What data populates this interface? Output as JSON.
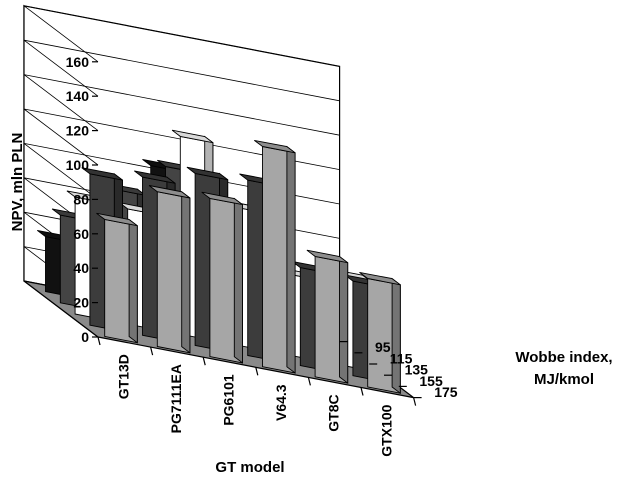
{
  "chart_data": {
    "type": "bar",
    "title": "",
    "xlabel": "GT model",
    "ylabel": "NPV, mln PLN",
    "zlabel": [
      "Wobbe index,",
      "MJ/kmol"
    ],
    "categories": [
      "GT13D",
      "PG7111EA",
      "PG6101",
      "V64.3",
      "GT8C",
      "GTX100"
    ],
    "depth_categories": [
      "95",
      "115",
      "135",
      "155",
      "175"
    ],
    "ylim": [
      0,
      160
    ],
    "yticks": [
      "0",
      "20",
      "40",
      "60",
      "80",
      "100",
      "120",
      "140",
      "160"
    ],
    "grid": true,
    "series": [
      {
        "name": "95",
        "color": "#a6a6a6",
        "values": [
          68,
          90,
          92,
          128,
          70,
          63
        ]
      },
      {
        "name": "115",
        "color": "#3c3c3c",
        "values": [
          88,
          92,
          100,
          102,
          57,
          55
        ]
      },
      {
        "name": "135",
        "color": "#ffffff",
        "values": [
          68,
          67,
          115,
          80,
          47,
          52
        ]
      },
      {
        "name": "155",
        "color": "#444444",
        "values": [
          51,
          72,
          91,
          68,
          40,
          37
        ]
      },
      {
        "name": "175",
        "color": "#111111",
        "values": [
          32,
          56,
          85,
          62,
          24,
          35
        ]
      }
    ]
  }
}
